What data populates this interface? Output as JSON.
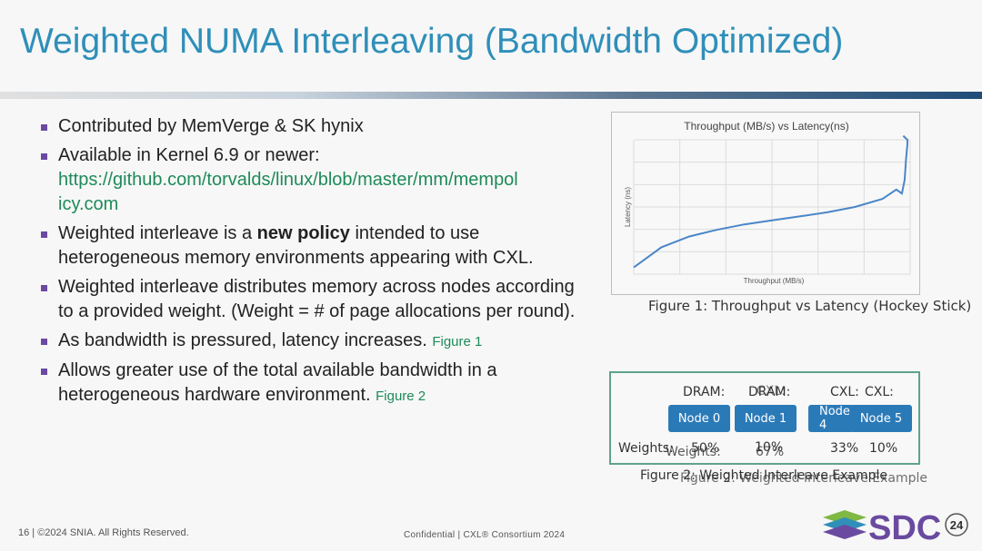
{
  "slide": {
    "title": "Weighted NUMA Interleaving (Bandwidth Optimized)"
  },
  "bullets": {
    "b1": "Contributed by MemVerge & SK hynix",
    "b2_text": "Available in Kernel 6.9 or newer:",
    "b2_link_line1": "https://github.com/torvalds/linux/blob/master/mm/mempol",
    "b2_link_line2": "icy.com",
    "b3_pre": "Weighted interleave is a ",
    "b3_bold": "new policy",
    "b3_post": " intended to use heterogeneous memory environments appearing with CXL.",
    "b4": "Weighted interleave distributes memory across nodes according to a provided weight. (Weight = # of page allocations per round).",
    "b5_text": "As bandwidth is pressured, latency increases. ",
    "b5_ref": "Figure 1",
    "b6_text": "Allows greater use of the total available bandwidth in a heterogeneous hardware environment. ",
    "b6_ref": "Figure 2"
  },
  "figure1": {
    "caption": "Figure 1: Throughput vs Latency (Hockey Stick)"
  },
  "chart_data": {
    "type": "line",
    "title": "Throughput (MB/s) vs Latency(ns)",
    "xlabel": "Throughput (MB/s)",
    "ylabel": "Latency (ns)",
    "grid": true,
    "xlim": [
      0,
      10
    ],
    "ylim": [
      0,
      10
    ],
    "series": [
      {
        "x": [
          0,
          1,
          2,
          3,
          4,
          5,
          6,
          7,
          8,
          9.0,
          9.5,
          9.7,
          9.8,
          9.85,
          9.9,
          9.9,
          9.75
        ],
        "y": [
          0.5,
          2.0,
          2.8,
          3.3,
          3.7,
          4.0,
          4.3,
          4.6,
          5.0,
          5.6,
          6.3,
          6.0,
          7.0,
          8.5,
          9.7,
          10.0,
          10.3
        ],
        "color": "#4a86c8"
      }
    ]
  },
  "figure2": {
    "labels": {
      "dram1": "DRAM:",
      "dram2": "DRAM:",
      "cxl_overlap": "CXL:",
      "cxl1": "CXL:",
      "cxl2": "CXL:"
    },
    "nodes": [
      "Node 0",
      "Node 1",
      "Node 4",
      "Node 5"
    ],
    "weights": {
      "label1": "Weights:",
      "label2": "Weights:",
      "w1": "50%",
      "w2": "10%",
      "w3": "67%",
      "w4": "33%",
      "w5": "10%"
    },
    "caption_a": "Figure 2: Weighted Interleave Example",
    "caption_b": "Figure 2: Weighted Interleave Example"
  },
  "footer": {
    "left": "16 | ©2024 SNIA. All Rights Reserved.",
    "middle": "Confidential  |  CXL® Consortium 2024",
    "logo_text": "SDC",
    "logo_badge": "24",
    "logo_colors": [
      "#7fb843",
      "#2f8fb9",
      "#6a4aa0"
    ]
  }
}
